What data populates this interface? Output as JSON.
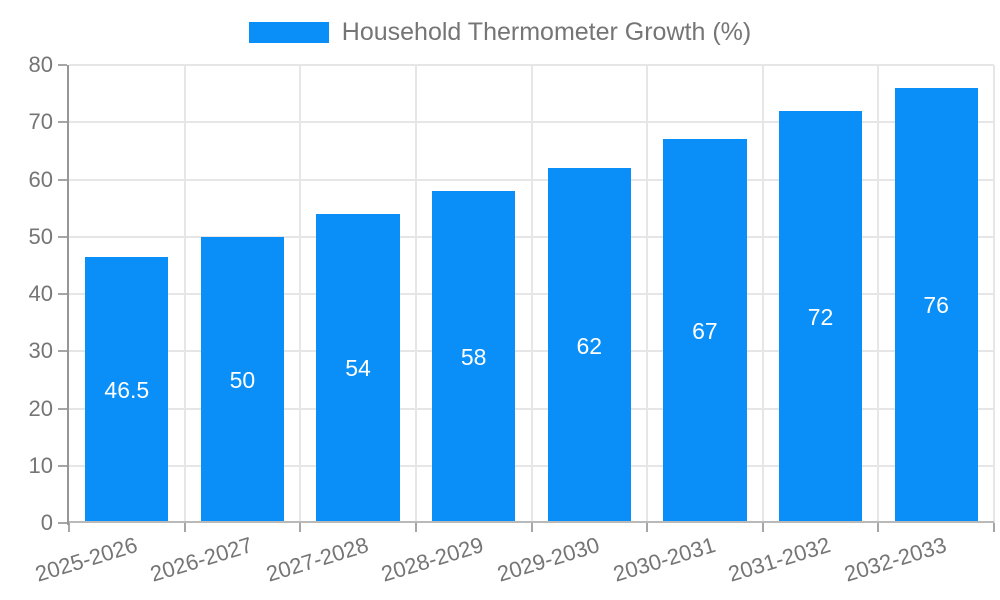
{
  "chart_data": {
    "type": "bar",
    "title": "Household Thermometer Growth (%)",
    "legend": [
      "Household Thermometer Growth (%)"
    ],
    "legend_position": "top",
    "categories": [
      "2025-2026",
      "2026-2027",
      "2027-2028",
      "2028-2029",
      "2029-2030",
      "2030-2031",
      "2031-2032",
      "2032-2033"
    ],
    "values": [
      46.5,
      50,
      54,
      58,
      62,
      67,
      72,
      76
    ],
    "data_labels": [
      "46.5",
      "50",
      "54",
      "58",
      "62",
      "67",
      "72",
      "76"
    ],
    "xlabel": "",
    "ylabel": "",
    "ylim": [
      0,
      80
    ],
    "yticks": [
      0,
      10,
      20,
      30,
      40,
      50,
      60,
      70,
      80
    ],
    "grid": true,
    "colors": {
      "bar": "#0a8ff8",
      "axis_text": "#757575",
      "grid_line": "#e6e6e6",
      "axis_line_y": "#979797",
      "axis_line_x": "#b9b9b9",
      "tick_mark": "#a6a6a6",
      "value_label": "#ffffff",
      "background": "#ffffff"
    }
  }
}
